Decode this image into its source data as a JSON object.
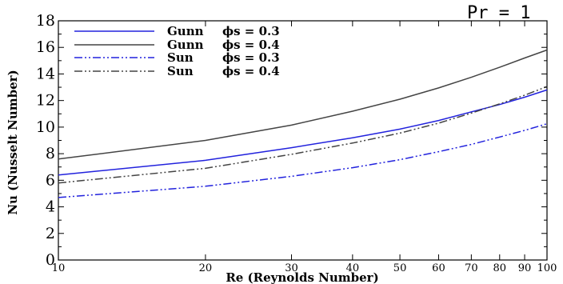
{
  "chart_data": {
    "type": "line",
    "xlabel": "Re (Reynolds Number)",
    "ylabel": "Nu (Nusselt Number)",
    "annotation": "Pr = 1",
    "x_scale": "log",
    "xlim": [
      10,
      100
    ],
    "ylim": [
      0,
      18
    ],
    "x_ticks": [
      10,
      20,
      30,
      40,
      50,
      60,
      70,
      80,
      90,
      100
    ],
    "x_tick_labels": [
      "10",
      "20",
      "30",
      "40",
      "50",
      "60",
      "70",
      "80",
      "90",
      "100"
    ],
    "y_ticks": [
      0,
      2,
      4,
      6,
      8,
      10,
      12,
      14,
      16,
      18
    ],
    "y_tick_labels": [
      "0",
      "2",
      "4",
      "6",
      "8",
      "10",
      "12",
      "14",
      "16",
      "18"
    ],
    "legend_position": "top-left",
    "x": [
      10,
      20,
      30,
      40,
      50,
      60,
      70,
      80,
      90,
      100
    ],
    "series": [
      {
        "name": "Gunn",
        "phi_label": "ϕs = 0.3",
        "color": "#2222dd",
        "dash": "solid",
        "values": [
          6.4,
          7.5,
          8.45,
          9.2,
          9.85,
          10.5,
          11.15,
          11.7,
          12.25,
          12.8
        ]
      },
      {
        "name": "Gunn",
        "phi_label": "ϕs = 0.4",
        "color": "#444444",
        "dash": "solid",
        "values": [
          7.6,
          9.0,
          10.15,
          11.2,
          12.1,
          12.95,
          13.75,
          14.5,
          15.2,
          15.8
        ]
      },
      {
        "name": "Sun",
        "phi_label": "ϕs = 0.3",
        "color": "#2222dd",
        "dash": "dashdotdot",
        "values": [
          4.7,
          5.55,
          6.3,
          6.95,
          7.55,
          8.15,
          8.7,
          9.25,
          9.75,
          10.25
        ]
      },
      {
        "name": "Sun",
        "phi_label": "ϕs = 0.4",
        "color": "#444444",
        "dash": "dashdotdot",
        "values": [
          5.8,
          6.9,
          7.95,
          8.8,
          9.55,
          10.3,
          11.05,
          11.75,
          12.4,
          13.05
        ]
      }
    ]
  }
}
